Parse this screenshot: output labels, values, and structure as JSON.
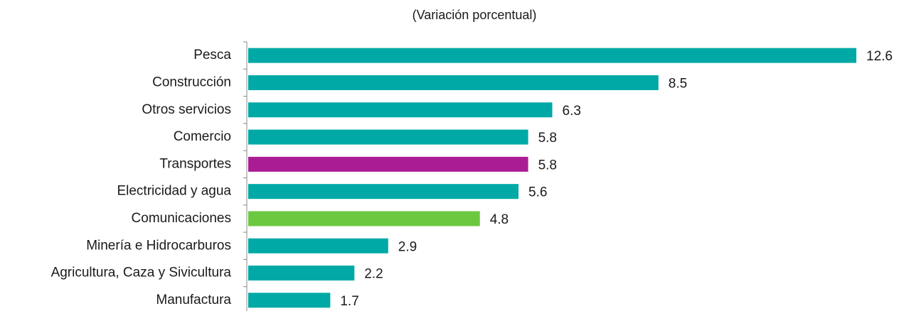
{
  "chart_data": {
    "type": "bar",
    "orientation": "horizontal",
    "title": "(Variación porcentual)",
    "categories": [
      "Pesca",
      "Construcción",
      "Otros servicios",
      "Comercio",
      "Transportes",
      "Electricidad y agua",
      "Comunicaciones",
      "Minería e Hidrocarburos",
      "Agricultura, Caza y Sivicultura",
      "Manufactura"
    ],
    "values": [
      12.6,
      8.5,
      6.3,
      5.8,
      5.8,
      5.6,
      4.8,
      2.9,
      2.2,
      1.7
    ],
    "colors": [
      "#00a9a6",
      "#00a9a6",
      "#00a9a6",
      "#00a9a6",
      "#aa1c94",
      "#00a9a6",
      "#6cc83f",
      "#00a9a6",
      "#00a9a6",
      "#00a9a6"
    ]
  }
}
